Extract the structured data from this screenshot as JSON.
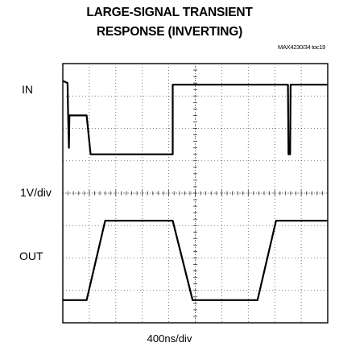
{
  "chart_data": {
    "type": "line",
    "title_line1": "LARGE-SIGNAL TRANSIENT",
    "title_line2": "RESPONSE (INVERTING)",
    "figure_id": "MAX4230/34 toc19",
    "channel_labels": {
      "in": "IN",
      "scale": "1V/div",
      "out": "OUT"
    },
    "xlabel": "400ns/div",
    "grid": true,
    "divisions": {
      "x": 10,
      "y": 8
    },
    "xlim": [
      0,
      10
    ],
    "ylim": [
      0,
      8
    ],
    "series": [
      {
        "name": "IN",
        "x": [
          0,
          0.05,
          0.18,
          0.2,
          0.23,
          0.25,
          0.9,
          1.05,
          4.15,
          4.15,
          4.35,
          4.35,
          4.45,
          4.6,
          8.5,
          8.52,
          8.58,
          8.6,
          10
        ],
        "y": [
          7.45,
          7.45,
          7.4,
          6.4,
          5.4,
          6.4,
          6.4,
          5.2,
          5.2,
          7.35,
          7.35,
          7.35,
          7.35,
          7.35,
          7.35,
          5.2,
          5.2,
          7.35,
          7.35
        ]
      },
      {
        "name": "OUT",
        "x": [
          0,
          0.9,
          1.6,
          4.15,
          4.9,
          7.35,
          8.05,
          10
        ],
        "y": [
          0.7,
          0.7,
          3.15,
          3.15,
          0.7,
          0.7,
          3.15,
          3.15
        ]
      }
    ]
  }
}
